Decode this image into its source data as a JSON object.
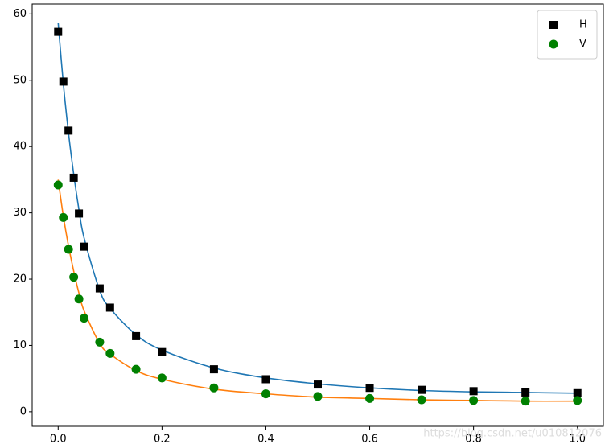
{
  "chart_data": {
    "type": "scatter",
    "x": [
      0,
      0.01,
      0.02,
      0.03,
      0.04,
      0.05,
      0.08,
      0.1,
      0.15,
      0.2,
      0.3,
      0.4,
      0.5,
      0.6,
      0.7,
      0.8,
      0.9,
      1.0
    ],
    "series": [
      {
        "kind": "line",
        "color": "#1f77b4",
        "values": [
          58.7,
          49.5,
          42.0,
          35.8,
          30.5,
          26.2,
          18.3,
          15.6,
          11.6,
          9.3,
          6.6,
          5.1,
          4.2,
          3.6,
          3.2,
          3.0,
          2.9,
          2.8
        ]
      },
      {
        "kind": "line",
        "color": "#ff7f0e",
        "values": [
          35.0,
          29.5,
          25.0,
          21.2,
          17.9,
          15.2,
          10.3,
          8.7,
          6.2,
          4.9,
          3.4,
          2.7,
          2.2,
          2.0,
          1.8,
          1.7,
          1.6,
          1.6
        ]
      },
      {
        "name": "H",
        "kind": "square",
        "color": "#000000",
        "values": [
          57.3,
          49.8,
          42.4,
          35.3,
          29.9,
          24.9,
          18.6,
          15.7,
          11.4,
          9.0,
          6.4,
          4.9,
          4.1,
          3.6,
          3.3,
          3.1,
          2.9,
          2.8
        ]
      },
      {
        "name": "V",
        "kind": "circle",
        "color": "#008000",
        "values": [
          34.2,
          29.3,
          24.5,
          20.3,
          17.0,
          14.1,
          10.5,
          8.8,
          6.4,
          5.1,
          3.6,
          2.7,
          2.3,
          2.0,
          1.8,
          1.7,
          1.6,
          1.7
        ]
      }
    ],
    "xlim": [
      -0.05,
      1.05
    ],
    "ylim": [
      -2.2,
      61.5
    ],
    "xticks": [
      {
        "value": 0,
        "label": "0.0"
      },
      0.2,
      0.4,
      0.6,
      0.8,
      {
        "value": 1,
        "label": "1.0"
      }
    ],
    "yticks": [
      0,
      10,
      20,
      30,
      40,
      50,
      60
    ],
    "legend": "upper right",
    "watermark": "https://blog.csdn.net/u010812076"
  }
}
